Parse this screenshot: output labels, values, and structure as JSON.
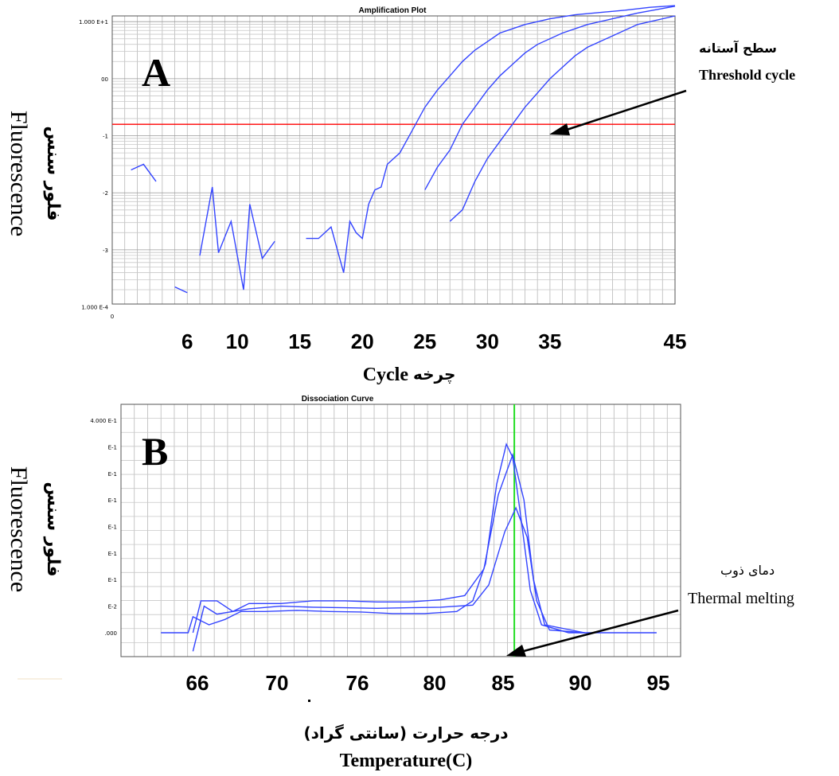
{
  "chart_data": [
    {
      "panel": "A",
      "type": "line",
      "title": "Amplification Plot",
      "ylabel_en": "Fluorescence",
      "ylabel_fa": "فلور سنس",
      "xlabel_en": "Cycle",
      "xlabel_fa": "چرخه",
      "scale": "log",
      "y_ticks": [
        {
          "log": 1,
          "label": "1.000 E+1"
        },
        {
          "log": 0,
          "label": "00"
        },
        {
          "log": -1,
          "label": "-1"
        },
        {
          "log": -2,
          "label": "-2"
        },
        {
          "log": -3,
          "label": "-3"
        },
        {
          "log": -4,
          "label": "1.000 E-4"
        }
      ],
      "x_small_tick": "0",
      "x_ticks": [
        "6",
        "10",
        "15",
        "20",
        "25",
        "30",
        "35",
        "45"
      ],
      "x_tick_cycles": [
        6,
        10,
        15,
        20,
        25,
        30,
        35,
        45
      ],
      "xlim": [
        0,
        45
      ],
      "ylim_log": [
        -4,
        1
      ],
      "threshold": {
        "log": -0.8,
        "color": "#ff0000"
      },
      "series_color": "#3344ff",
      "series": [
        {
          "points": [
            [
              1.5,
              -1.6
            ],
            [
              2.5,
              -1.5
            ],
            [
              3.5,
              -1.8
            ]
          ]
        },
        {
          "points": [
            [
              5,
              -3.65
            ],
            [
              6,
              -3.75
            ]
          ]
        },
        {
          "points": [
            [
              7,
              -3.1
            ],
            [
              8,
              -1.9
            ],
            [
              8.5,
              -3.05
            ],
            [
              9.5,
              -2.5
            ],
            [
              10.5,
              -3.7
            ],
            [
              11,
              -2.2
            ],
            [
              12,
              -3.15
            ],
            [
              13,
              -2.85
            ]
          ]
        },
        {
          "points": [
            [
              15.5,
              -2.8
            ],
            [
              16.5,
              -2.8
            ],
            [
              17.5,
              -2.6
            ],
            [
              18,
              -3.0
            ],
            [
              18.5,
              -3.4
            ],
            [
              19,
              -2.5
            ],
            [
              19.5,
              -2.7
            ],
            [
              20,
              -2.8
            ],
            [
              20.5,
              -2.2
            ],
            [
              21,
              -1.95
            ],
            [
              21.5,
              -1.9
            ],
            [
              22,
              -1.5
            ],
            [
              23,
              -1.3
            ],
            [
              24,
              -0.9
            ],
            [
              25,
              -0.5
            ],
            [
              26,
              -0.2
            ],
            [
              27,
              0.05
            ],
            [
              28,
              0.3
            ],
            [
              29,
              0.5
            ],
            [
              30,
              0.65
            ],
            [
              31,
              0.8
            ],
            [
              33,
              0.95
            ],
            [
              35,
              1.05
            ],
            [
              37,
              1.12
            ],
            [
              39,
              1.16
            ],
            [
              41,
              1.2
            ],
            [
              43,
              1.25
            ],
            [
              45,
              1.28
            ]
          ]
        },
        {
          "points": [
            [
              25,
              -1.95
            ],
            [
              26,
              -1.55
            ],
            [
              27,
              -1.25
            ],
            [
              28,
              -0.8
            ],
            [
              29,
              -0.5
            ],
            [
              30,
              -0.2
            ],
            [
              31,
              0.05
            ],
            [
              32,
              0.25
            ],
            [
              33,
              0.45
            ],
            [
              34,
              0.6
            ],
            [
              36,
              0.8
            ],
            [
              38,
              0.95
            ],
            [
              40,
              1.05
            ],
            [
              42,
              1.15
            ],
            [
              45,
              1.27
            ]
          ]
        },
        {
          "points": [
            [
              27,
              -2.5
            ],
            [
              28,
              -2.3
            ],
            [
              29,
              -1.8
            ],
            [
              30,
              -1.4
            ],
            [
              31,
              -1.1
            ],
            [
              32,
              -0.8
            ],
            [
              33,
              -0.5
            ],
            [
              34,
              -0.25
            ],
            [
              35,
              0.0
            ],
            [
              36,
              0.2
            ],
            [
              37,
              0.4
            ],
            [
              38,
              0.55
            ],
            [
              40,
              0.75
            ],
            [
              42,
              0.95
            ],
            [
              45,
              1.1
            ]
          ]
        }
      ],
      "annotations": {
        "fa": "سطح آستانه",
        "en": "Threshold cycle"
      }
    },
    {
      "panel": "B",
      "type": "line",
      "title": "Dissociation Curve",
      "ylabel_en": "Fluorescence",
      "ylabel_fa": "فلور سنس",
      "xlabel_fa": "درجه حرارت (سانتی گراد)",
      "xlabel_en": "Temperature(C)",
      "y_ticks": [
        "4.000 E-1",
        "E-1",
        "E-1",
        "E-1",
        "E-1",
        "E-1",
        "E-1",
        "E-2",
        ".000"
      ],
      "x_ticks": [
        "66",
        "70",
        "76",
        "80",
        "85",
        "90",
        "95"
      ],
      "x_tick_temps": [
        66,
        70,
        76,
        80,
        85,
        90,
        95
      ],
      "xlim": [
        60,
        95
      ],
      "ylim": [
        -0.04,
        0.4
      ],
      "melting_temp": 84.6,
      "melting_color": "#22dd22",
      "series_color": "#3344ff",
      "series": [
        {
          "points": [
            [
              62.5,
              0.0
            ],
            [
              63.5,
              0.0
            ],
            [
              64.2,
              0.0
            ],
            [
              64.5,
              0.03
            ],
            [
              65.5,
              0.015
            ],
            [
              66.5,
              0.025
            ],
            [
              67.5,
              0.04
            ],
            [
              69,
              0.04
            ],
            [
              71,
              0.042
            ],
            [
              73,
              0.04
            ],
            [
              75,
              0.039
            ],
            [
              77,
              0.036
            ],
            [
              79,
              0.036
            ],
            [
              81,
              0.04
            ],
            [
              82,
              0.06
            ],
            [
              82.8,
              0.13
            ],
            [
              83.5,
              0.28
            ],
            [
              84.1,
              0.355
            ],
            [
              84.5,
              0.33
            ],
            [
              85,
              0.22
            ],
            [
              85.6,
              0.08
            ],
            [
              86.3,
              0.015
            ],
            [
              88,
              0.0
            ],
            [
              93.5,
              0.0
            ]
          ]
        },
        {
          "points": [
            [
              64.5,
              0.0
            ],
            [
              65,
              0.06
            ],
            [
              66,
              0.06
            ],
            [
              67,
              0.04
            ],
            [
              68,
              0.055
            ],
            [
              70,
              0.055
            ],
            [
              72,
              0.06
            ],
            [
              74,
              0.06
            ],
            [
              76,
              0.058
            ],
            [
              78,
              0.058
            ],
            [
              80,
              0.062
            ],
            [
              81.5,
              0.07
            ],
            [
              82.7,
              0.12
            ],
            [
              83.6,
              0.26
            ],
            [
              84.5,
              0.335
            ],
            [
              85.2,
              0.25
            ],
            [
              85.8,
              0.1
            ],
            [
              86.5,
              0.015
            ],
            [
              89,
              0.0
            ]
          ]
        },
        {
          "points": [
            [
              64.5,
              -0.035
            ],
            [
              65.2,
              0.05
            ],
            [
              66,
              0.035
            ],
            [
              67,
              0.04
            ],
            [
              68,
              0.045
            ],
            [
              70,
              0.05
            ],
            [
              72,
              0.048
            ],
            [
              74,
              0.047
            ],
            [
              76,
              0.046
            ],
            [
              78,
              0.047
            ],
            [
              80,
              0.048
            ],
            [
              82,
              0.052
            ],
            [
              83,
              0.09
            ],
            [
              84,
              0.19
            ],
            [
              84.7,
              0.235
            ],
            [
              85.4,
              0.18
            ],
            [
              86,
              0.06
            ],
            [
              86.8,
              0.005
            ],
            [
              89,
              0.0
            ]
          ]
        }
      ],
      "annotations": {
        "fa": "دمای ذوب",
        "en": "Thermal melting"
      }
    }
  ]
}
